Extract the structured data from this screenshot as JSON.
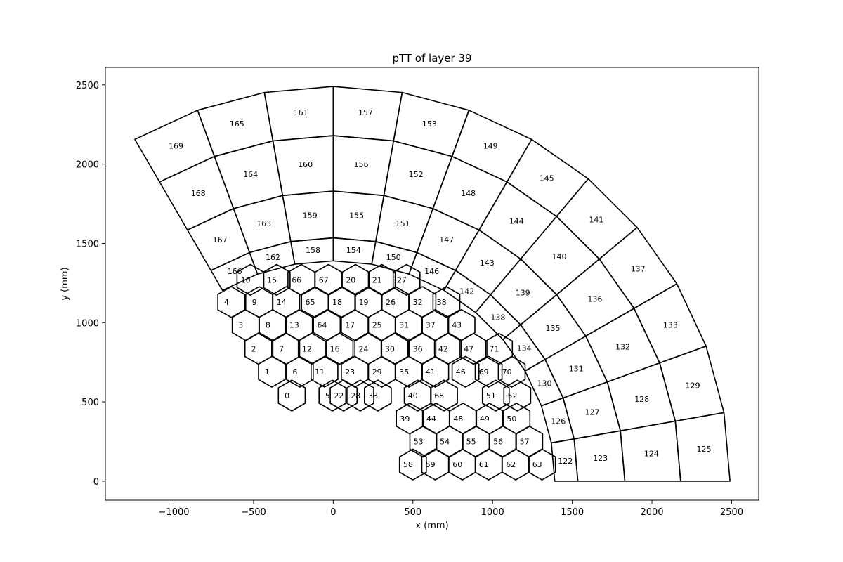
{
  "chart_data": {
    "type": "cell-map",
    "title": "pTT of layer 39",
    "xlabel": "x (mm)",
    "ylabel": "y (mm)",
    "xlim": [
      -1430,
      2670
    ],
    "ylim": [
      -120,
      2610
    ],
    "xticks": [
      -1000,
      -500,
      0,
      500,
      1000,
      1500,
      2000,
      2500
    ],
    "xtick_labels": [
      "−1000",
      "−500",
      "0",
      "500",
      "1000",
      "1500",
      "2000",
      "2500"
    ],
    "yticks": [
      0,
      500,
      1000,
      1500,
      2000,
      2500
    ],
    "ytick_labels": [
      "0",
      "500",
      "1000",
      "1500",
      "2000",
      "2500"
    ],
    "grid": false,
    "scintillator": {
      "radii": [
        1390,
        1535,
        1830,
        2180,
        2490
      ],
      "angle_bins_deg": [
        0,
        10,
        20,
        30,
        40,
        50,
        60,
        70,
        80,
        90,
        100,
        110,
        120
      ],
      "extra_inner_radii": [
        1280,
        1385
      ],
      "first_id": 122
    },
    "silicon": {
      "hex_size": 97,
      "rows": [
        {
          "y": 540,
          "cells": [
            [
              -260,
              0
            ],
            [
              -5,
              5
            ],
            [
              65,
              22
            ],
            [
              170,
              28
            ],
            [
              280,
              33
            ],
            [
              530,
              40
            ],
            [
              695,
              68
            ],
            [
              1020,
              51
            ],
            [
              1155,
              52
            ]
          ]
        },
        {
          "y": 690,
          "cells": [
            [
              -385,
              1
            ],
            [
              -210,
              6
            ],
            [
              -55,
              11
            ],
            [
              135,
              23
            ],
            [
              305,
              29
            ],
            [
              475,
              35
            ],
            [
              640,
              41
            ],
            [
              830,
              46
            ],
            [
              975,
              69
            ],
            [
              1120,
              70
            ]
          ]
        },
        {
          "y": 835,
          "cells": [
            [
              -470,
              2
            ],
            [
              -295,
              7
            ],
            [
              -135,
              12
            ],
            [
              40,
              16
            ],
            [
              220,
              24
            ],
            [
              385,
              30
            ],
            [
              560,
              36
            ],
            [
              720,
              42
            ],
            [
              880,
              47
            ],
            [
              1040,
              71
            ]
          ]
        },
        {
          "y": 985,
          "cells": [
            [
              -550,
              3
            ],
            [
              -380,
              8
            ],
            [
              -215,
              13
            ],
            [
              -40,
              64
            ],
            [
              135,
              17
            ],
            [
              305,
              25
            ],
            [
              475,
              31
            ],
            [
              640,
              37
            ],
            [
              805,
              43
            ]
          ]
        },
        {
          "y": 1130,
          "cells": [
            [
              -640,
              4
            ],
            [
              -465,
              9
            ],
            [
              -295,
              14
            ],
            [
              -115,
              65
            ],
            [
              55,
              18
            ],
            [
              220,
              19
            ],
            [
              390,
              26
            ],
            [
              560,
              32
            ],
            [
              710,
              38
            ]
          ]
        },
        {
          "y": 1270,
          "cells": [
            [
              -520,
              10
            ],
            [
              -355,
              15
            ],
            [
              -200,
              66
            ],
            [
              -30,
              67
            ],
            [
              140,
              20
            ],
            [
              305,
              21
            ],
            [
              460,
              27
            ]
          ]
        },
        {
          "y": 395,
          "cells": [
            [
              480,
              39
            ],
            [
              645,
              44
            ],
            [
              815,
              48
            ],
            [
              980,
              49
            ],
            [
              1150,
              50
            ]
          ]
        },
        {
          "y": 250,
          "cells": [
            [
              565,
              53
            ],
            [
              730,
              54
            ],
            [
              895,
              55
            ],
            [
              1065,
              56
            ],
            [
              1230,
              57
            ]
          ]
        },
        {
          "y": 105,
          "cells": [
            [
              500,
              58
            ],
            [
              640,
              59
            ],
            [
              810,
              60
            ],
            [
              975,
              61
            ],
            [
              1145,
              62
            ],
            [
              1310,
              63
            ]
          ]
        }
      ],
      "extra_labels": [
        [
          45,
          2100,
          157
        ]
      ]
    }
  }
}
